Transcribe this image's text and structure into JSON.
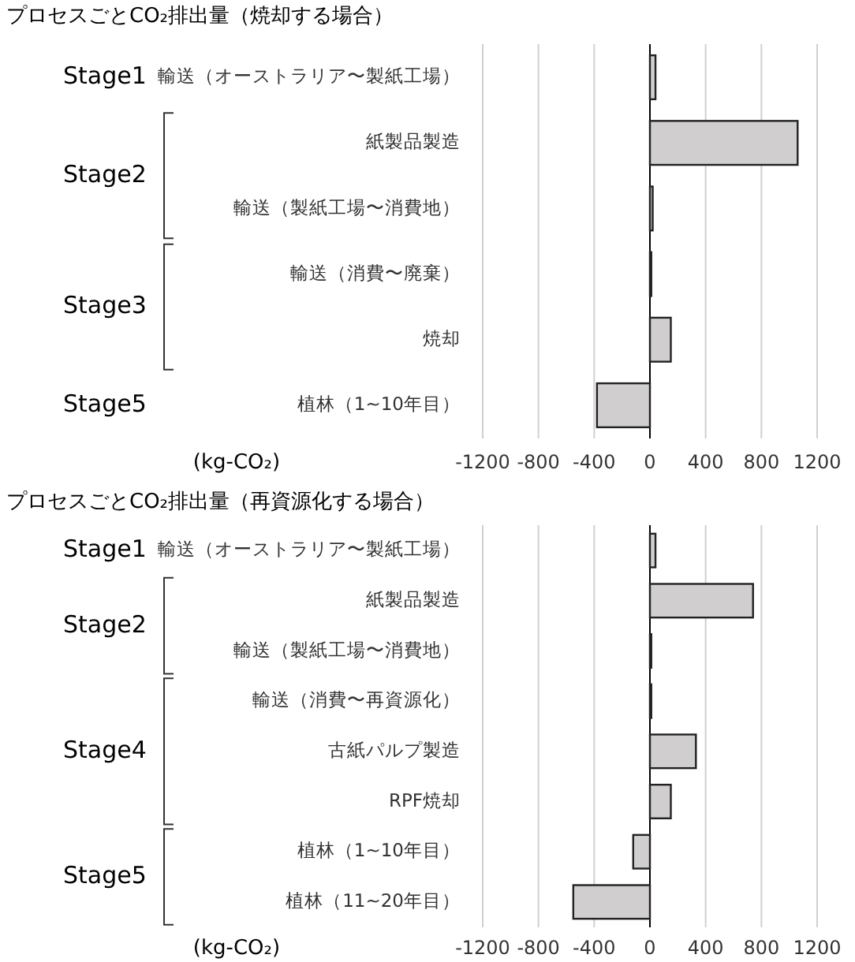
{
  "chart_data": [
    {
      "type": "bar",
      "orientation": "horizontal",
      "title": "プロセスごとCO₂排出量（焼却する場合）",
      "xlabel": "(kg-CO₂)",
      "categories": [
        "輸送（オーストラリア〜製紙工場）",
        "紙製品製造",
        "輸送（製紙工場〜消費地）",
        "輸送（消費〜廃棄）",
        "焼却",
        "植林（1~10年目）"
      ],
      "values": [
        40,
        1060,
        20,
        10,
        150,
        -380
      ],
      "color": "#d0cecf",
      "xlim": [
        -1200,
        1200
      ],
      "xticks": [
        -1200,
        -800,
        -400,
        0,
        400,
        800,
        1200
      ],
      "grid": "x",
      "annotations": [
        "Stage1",
        "Stage2",
        "Stage3",
        "Stage5"
      ]
    },
    {
      "type": "bar",
      "orientation": "horizontal",
      "title": "プロセスごとCO₂排出量（再資源化する場合）",
      "xlabel": "(kg-CO₂)",
      "categories": [
        "輸送（オーストラリア〜製紙工場）",
        "紙製品製造",
        "輸送（製紙工場〜消費地）",
        "輸送（消費〜再資源化）",
        "古紙パルプ製造",
        "RPF焼却",
        "植林（1~10年目）",
        "植林（11~20年目）"
      ],
      "values": [
        40,
        740,
        10,
        10,
        330,
        150,
        -120,
        -550
      ],
      "color": "#d0cecf",
      "xlim": [
        -1200,
        1200
      ],
      "xticks": [
        -1200,
        -800,
        -400,
        0,
        400,
        800,
        1200
      ],
      "grid": "x",
      "annotations": [
        "Stage1",
        "Stage2",
        "Stage4",
        "Stage5"
      ]
    }
  ]
}
